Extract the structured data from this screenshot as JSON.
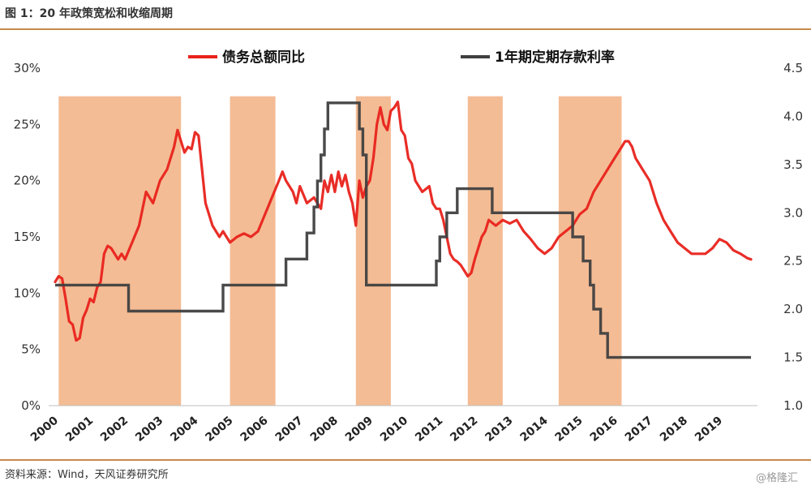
{
  "header": {
    "title": "图 1：20 年政策宽松和收缩周期"
  },
  "footer": {
    "source": "资料来源：Wind，天风证券研究所",
    "watermark": "@格隆汇"
  },
  "colors": {
    "debt_line": "#e8221b",
    "rate_line": "#404040",
    "band": "#f4bc94",
    "rule": "#c98a4a"
  },
  "chart_data": {
    "type": "line",
    "title": "",
    "x_range": [
      2000.0,
      2019.9
    ],
    "x_ticks": [
      "2000",
      "2001",
      "2002",
      "2003",
      "2004",
      "2005",
      "2006",
      "2007",
      "2008",
      "2009",
      "2010",
      "2011",
      "2012",
      "2013",
      "2014",
      "2015",
      "2016",
      "2017",
      "2018",
      "2019"
    ],
    "y_left": {
      "range": [
        0,
        30
      ],
      "ticks": [
        "0%",
        "5%",
        "10%",
        "15%",
        "20%",
        "25%",
        "30%"
      ]
    },
    "y_right": {
      "range": [
        1.0,
        4.5
      ],
      "ticks": [
        "1.0",
        "1.5",
        "2.0",
        "2.5",
        "3.0",
        "3.5",
        "4.0",
        "4.5"
      ]
    },
    "grid": false,
    "legend_position": "top",
    "shaded_periods": [
      [
        2000.1,
        2003.6
      ],
      [
        2005.0,
        2006.3
      ],
      [
        2008.6,
        2009.6
      ],
      [
        2011.8,
        2012.8
      ],
      [
        2014.4,
        2016.2
      ]
    ],
    "series": [
      {
        "name": "债务总额同比",
        "axis": "left",
        "x": [
          2000.0,
          2000.1,
          2000.2,
          2000.3,
          2000.4,
          2000.5,
          2000.6,
          2000.7,
          2000.8,
          2000.9,
          2001.0,
          2001.1,
          2001.2,
          2001.3,
          2001.4,
          2001.5,
          2001.6,
          2001.8,
          2001.9,
          2002.0,
          2002.2,
          2002.4,
          2002.6,
          2002.8,
          2003.0,
          2003.2,
          2003.4,
          2003.5,
          2003.6,
          2003.7,
          2003.8,
          2003.9,
          2004.0,
          2004.1,
          2004.2,
          2004.3,
          2004.5,
          2004.7,
          2004.8,
          2004.9,
          2005.0,
          2005.2,
          2005.4,
          2005.6,
          2005.8,
          2006.0,
          2006.2,
          2006.4,
          2006.5,
          2006.6,
          2006.8,
          2006.9,
          2007.0,
          2007.2,
          2007.4,
          2007.5,
          2007.6,
          2007.7,
          2007.8,
          2007.9,
          2008.0,
          2008.1,
          2008.2,
          2008.3,
          2008.4,
          2008.5,
          2008.6,
          2008.7,
          2008.8,
          2008.9,
          2009.0,
          2009.1,
          2009.2,
          2009.3,
          2009.4,
          2009.5,
          2009.6,
          2009.7,
          2009.8,
          2009.9,
          2010.0,
          2010.1,
          2010.2,
          2010.3,
          2010.5,
          2010.7,
          2010.8,
          2010.9,
          2011.0,
          2011.1,
          2011.2,
          2011.3,
          2011.4,
          2011.5,
          2011.6,
          2011.7,
          2011.8,
          2011.9,
          2012.0,
          2012.1,
          2012.2,
          2012.3,
          2012.4,
          2012.6,
          2012.8,
          2013.0,
          2013.2,
          2013.4,
          2013.6,
          2013.8,
          2014.0,
          2014.2,
          2014.4,
          2014.6,
          2014.8,
          2015.0,
          2015.2,
          2015.4,
          2015.6,
          2015.8,
          2016.0,
          2016.2,
          2016.3,
          2016.4,
          2016.5,
          2016.6,
          2016.8,
          2017.0,
          2017.2,
          2017.4,
          2017.6,
          2017.8,
          2018.0,
          2018.2,
          2018.4,
          2018.6,
          2018.8,
          2019.0,
          2019.2,
          2019.4,
          2019.6,
          2019.8,
          2019.9
        ],
        "values": [
          11.0,
          11.5,
          11.3,
          9.5,
          7.5,
          7.2,
          5.8,
          6.0,
          7.8,
          8.5,
          9.5,
          9.2,
          10.5,
          11.0,
          13.5,
          14.2,
          14.0,
          13.0,
          13.5,
          13.0,
          14.5,
          16.0,
          19.0,
          18.0,
          20.0,
          21.0,
          23.0,
          24.5,
          23.5,
          22.5,
          23.0,
          22.8,
          24.3,
          24.0,
          21.0,
          18.0,
          16.0,
          15.0,
          15.5,
          15.0,
          14.5,
          15.0,
          15.3,
          15.0,
          15.5,
          17.0,
          18.5,
          20.0,
          20.8,
          20.0,
          19.0,
          18.0,
          19.5,
          18.0,
          18.5,
          18.0,
          17.5,
          20.0,
          19.0,
          20.5,
          19.0,
          20.8,
          19.5,
          20.5,
          19.0,
          18.0,
          16.0,
          20.0,
          18.5,
          19.5,
          20.0,
          22.0,
          25.0,
          26.5,
          25.0,
          24.5,
          26.2,
          26.5,
          27.0,
          24.5,
          24.0,
          22.0,
          21.5,
          20.0,
          19.0,
          19.5,
          18.0,
          17.5,
          17.5,
          16.5,
          15.0,
          13.5,
          13.0,
          12.8,
          12.5,
          12.0,
          11.5,
          11.8,
          13.0,
          14.0,
          15.0,
          15.5,
          16.5,
          16.0,
          16.5,
          16.2,
          16.5,
          15.5,
          14.8,
          14.0,
          13.5,
          14.0,
          15.0,
          15.5,
          16.0,
          17.0,
          17.5,
          19.0,
          20.0,
          21.0,
          22.0,
          23.0,
          23.5,
          23.5,
          23.0,
          22.0,
          21.0,
          20.0,
          18.0,
          16.5,
          15.5,
          14.5,
          14.0,
          13.5,
          13.5,
          13.5,
          14.0,
          14.8,
          14.5,
          13.8,
          13.5,
          13.1,
          13.0
        ]
      },
      {
        "name": "1年期定期存款利率",
        "axis": "right",
        "step": true,
        "x": [
          2000.0,
          2002.1,
          2004.8,
          2006.6,
          2007.2,
          2007.4,
          2007.5,
          2007.6,
          2007.7,
          2007.8,
          2008.7,
          2008.8,
          2008.9,
          2010.9,
          2011.0,
          2011.2,
          2011.5,
          2012.4,
          2012.5,
          2014.8,
          2015.1,
          2015.3,
          2015.4,
          2015.6,
          2015.8,
          2016.0,
          2019.9
        ],
        "values": [
          2.25,
          1.98,
          2.25,
          2.52,
          2.79,
          3.06,
          3.33,
          3.6,
          3.87,
          4.14,
          3.87,
          3.6,
          2.25,
          2.5,
          2.75,
          3.0,
          3.25,
          3.25,
          3.0,
          2.75,
          2.5,
          2.25,
          2.0,
          1.75,
          1.5,
          1.5,
          1.5
        ]
      }
    ]
  }
}
